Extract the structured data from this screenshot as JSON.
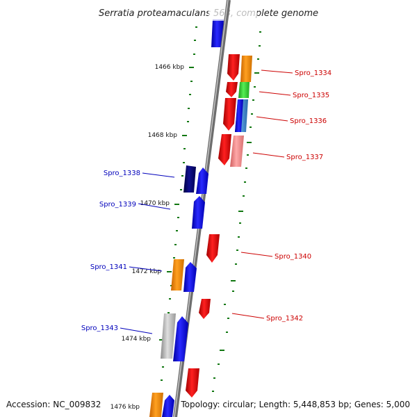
{
  "title": "Serratia proteamaculans 568, complete genome",
  "footer": {
    "accession": "Accession: NC_009832",
    "topology": "Topology: circular; Length: 5,448,853 bp; Genes: 5,000"
  },
  "kbp_labels": [
    "1466 kbp",
    "1468 kbp",
    "1470 kbp",
    "1472 kbp",
    "1474 kbp",
    "1476 kbp"
  ],
  "gene_labels": {
    "right": [
      "Spro_1334",
      "Spro_1335",
      "Spro_1336",
      "Spro_1337",
      "Spro_1340",
      "Spro_1342"
    ],
    "left": [
      "Spro_1338",
      "Spro_1339",
      "Spro_1341",
      "Spro_1343"
    ]
  },
  "colors": {
    "red": "#ee0000",
    "blue": "#0000ee",
    "navy": "#00006e",
    "orange": "#ff8c00",
    "green": "#33cc33",
    "steel": "#3a7fc4",
    "pink": "#f08080",
    "gray": "#b0b0b0",
    "tick": "#117711"
  }
}
